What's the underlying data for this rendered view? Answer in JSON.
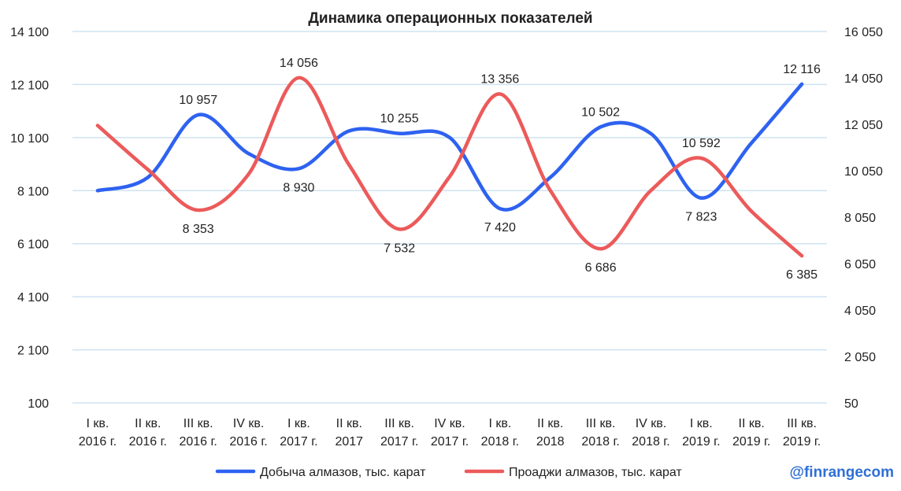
{
  "chart_data": {
    "type": "line",
    "title": "Динамика операционных показателей",
    "categories": [
      [
        "I кв.",
        "2016 г."
      ],
      [
        "II кв.",
        "2016  г."
      ],
      [
        "III кв.",
        "2016 г."
      ],
      [
        "IV кв.",
        "2016 г."
      ],
      [
        "I кв.",
        "2017 г."
      ],
      [
        "II кв.",
        "2017"
      ],
      [
        "III кв.",
        "2017 г."
      ],
      [
        "IV кв.",
        "2017 г."
      ],
      [
        "I кв.",
        "2018 г."
      ],
      [
        "II кв.",
        "2018"
      ],
      [
        "III кв.",
        "2018 г."
      ],
      [
        "IV кв.",
        "2018 г."
      ],
      [
        "I кв.",
        "2019 г."
      ],
      [
        "II кв.",
        "2019 г."
      ],
      [
        "III кв.",
        "2019 г."
      ]
    ],
    "y_left": {
      "ticks": [
        "100",
        "2 100",
        "4 100",
        "6 100",
        "8 100",
        "10 100",
        "12 100",
        "14 100"
      ],
      "ylim": [
        100,
        14100
      ]
    },
    "y_right": {
      "ticks": [
        "50",
        "2 050",
        "4 050",
        "6 050",
        "8 050",
        "10 050",
        "12 050",
        "14 050",
        "16 050"
      ],
      "ylim": [
        50,
        16050
      ]
    },
    "grid": true,
    "legend_position": "bottom",
    "series": [
      {
        "name": "Добыча алмазов, тыс. карат",
        "axis": "left",
        "color": "#2e62f0",
        "values": [
          8100,
          8600,
          10957,
          9500,
          8930,
          10350,
          10255,
          10100,
          7420,
          8600,
          10502,
          10250,
          7823,
          9900,
          12116
        ],
        "labels": [
          null,
          null,
          "10 957",
          null,
          "8 930",
          null,
          "10 255",
          null,
          "7 420",
          null,
          "10 502",
          null,
          "7 823",
          null,
          "12 116"
        ],
        "label_pos": [
          null,
          null,
          "above",
          null,
          "below",
          null,
          "above",
          null,
          "below",
          null,
          "above",
          null,
          "below",
          null,
          "above"
        ]
      },
      {
        "name": "Проаджи алмазов, тыс. карат",
        "axis": "right",
        "color": "#ec5a5a",
        "values": [
          12000,
          10100,
          8353,
          9900,
          14056,
          10300,
          7532,
          9800,
          13356,
          9200,
          6686,
          9200,
          10592,
          8300,
          6385
        ],
        "labels": [
          null,
          null,
          "8 353",
          null,
          "14 056",
          null,
          "7 532",
          null,
          "13 356",
          null,
          "6 686",
          null,
          "10 592",
          null,
          "6 385"
        ],
        "label_pos": [
          null,
          null,
          "below",
          null,
          "above",
          null,
          "below",
          null,
          "above",
          null,
          "below",
          null,
          "above",
          null,
          "below"
        ]
      }
    ]
  },
  "watermark": "@finrangecom"
}
